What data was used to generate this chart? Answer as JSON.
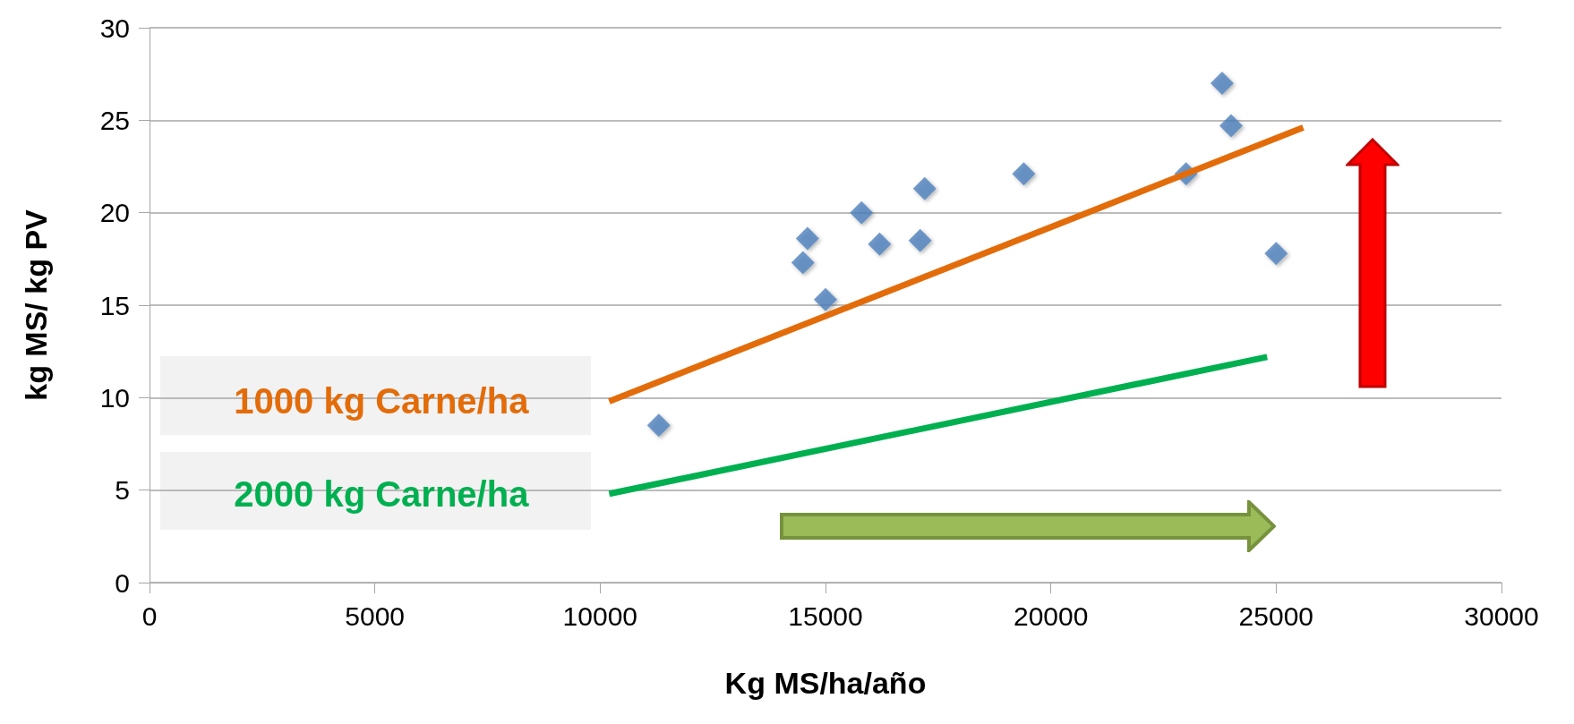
{
  "chart_data": {
    "type": "scatter",
    "xlabel": "Kg MS/ha/año",
    "ylabel": "kg MS/ kg PV",
    "xlim": [
      0,
      30000
    ],
    "xticks": [
      0,
      {
        "value": 5000,
        "label": "5000"
      },
      {
        "value": 10000,
        "label": "10000"
      },
      {
        "value": 15000,
        "label": "15000"
      },
      {
        "value": 20000,
        "label": "20000"
      },
      {
        "value": 25000,
        "label": "25000"
      },
      {
        "value": 30000,
        "label": "30000"
      }
    ],
    "ylim": [
      0,
      30
    ],
    "yticks": [
      0,
      5,
      10,
      15,
      20,
      25,
      30
    ],
    "grid": "y",
    "series": [
      {
        "marker": "diamond",
        "color": "#4f81bd",
        "x": [
          23800,
          24000,
          23000,
          19400,
          17200,
          17100,
          16200,
          15800,
          15000,
          25000,
          14600,
          14500,
          11300
        ],
        "values": [
          27.0,
          24.7,
          22.1,
          22.1,
          21.3,
          18.5,
          18.3,
          20.0,
          15.3,
          17.8,
          18.6,
          17.3,
          8.5
        ]
      },
      {
        "type": "line",
        "marker": "none",
        "name": "1000 kg Carne/ha",
        "color": "#e36c0a",
        "x": [
          10200,
          25600
        ],
        "values": [
          9.8,
          24.6
        ]
      },
      {
        "type": "line",
        "marker": "none",
        "name": "2000 kg Carne/ha",
        "color": "#00b050",
        "x": [
          10200,
          24800
        ],
        "values": [
          4.8,
          12.2
        ]
      }
    ]
  }
}
